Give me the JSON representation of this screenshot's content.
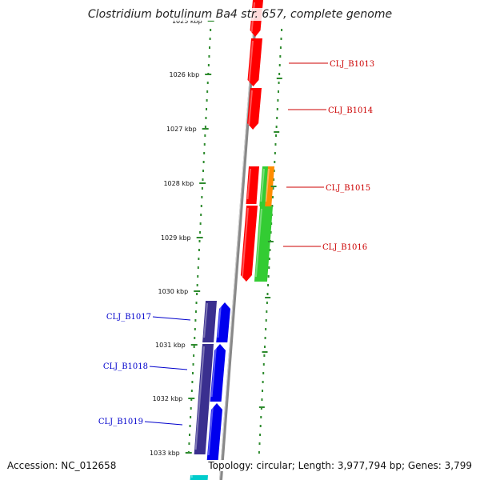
{
  "title": "Clostridium botulinum Ba4 str. 657, complete genome",
  "accession_text": "Accession: NC_012658",
  "stats_text": "Topology: circular; Length: 3,977,794 bp; Genes: 3,799",
  "colors": {
    "red": "#ff0000",
    "orange": "#ff8c00",
    "green": "#33cc33",
    "blue": "#0000ee",
    "navy": "#3a2f8f",
    "cyan": "#00cccc",
    "axis": "#888888",
    "dots": "#2e8b2e",
    "label_red": "#cc0000",
    "label_blue": "#0000cc"
  },
  "scale_ticks": [
    {
      "label": "1025 kbp"
    },
    {
      "label": "1026 kbp"
    },
    {
      "label": "1027 kbp"
    },
    {
      "label": "1028 kbp"
    },
    {
      "label": "1029 kbp"
    },
    {
      "label": "1030 kbp"
    },
    {
      "label": "1031 kbp"
    },
    {
      "label": "1032 kbp"
    },
    {
      "label": "1033 kbp"
    }
  ],
  "gene_labels": [
    {
      "text": "CLJ_B1013",
      "strand": "plus"
    },
    {
      "text": "CLJ_B1014",
      "strand": "plus"
    },
    {
      "text": "CLJ_B1015",
      "strand": "plus"
    },
    {
      "text": "CLJ_B1016",
      "strand": "plus"
    },
    {
      "text": "CLJ_B1017",
      "strand": "minus"
    },
    {
      "text": "CLJ_B1018",
      "strand": "minus"
    },
    {
      "text": "CLJ_B1019",
      "strand": "minus"
    }
  ]
}
